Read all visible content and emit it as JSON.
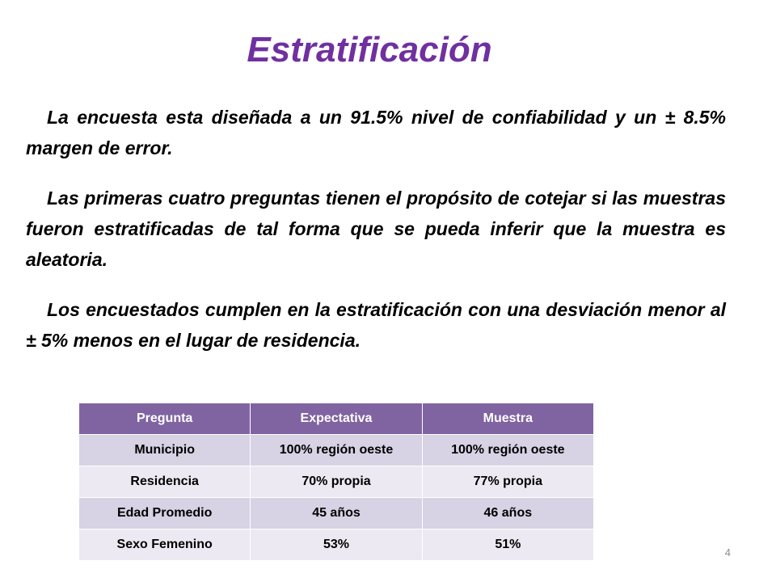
{
  "title": "Estratificación",
  "paragraphs": [
    "La encuesta esta diseñada a un 91.5% nivel de confiabilidad y un ± 8.5% margen de error.",
    "Las primeras cuatro preguntas tienen el propósito de cotejar si las muestras fueron estratificadas de tal forma que se pueda inferir que la muestra es aleatoria.",
    "Los encuestados cumplen en la estratificación con una desviación menor al ± 5% menos en el lugar de residencia."
  ],
  "table": {
    "headers": [
      "Pregunta",
      "Expectativa",
      "Muestra"
    ],
    "rows": [
      [
        "Municipio",
        "100% región oeste",
        "100% región oeste"
      ],
      [
        "Residencia",
        "70% propia",
        "77% propia"
      ],
      [
        "Edad Promedio",
        "45 años",
        "46 años"
      ],
      [
        "Sexo Femenino",
        "53%",
        "51%"
      ]
    ]
  },
  "page_number": "4",
  "colors": {
    "title": "#7030a0",
    "table_header": "#8064a2",
    "row_band_dark": "#d7d2e4",
    "row_band_light": "#ece9f2"
  }
}
